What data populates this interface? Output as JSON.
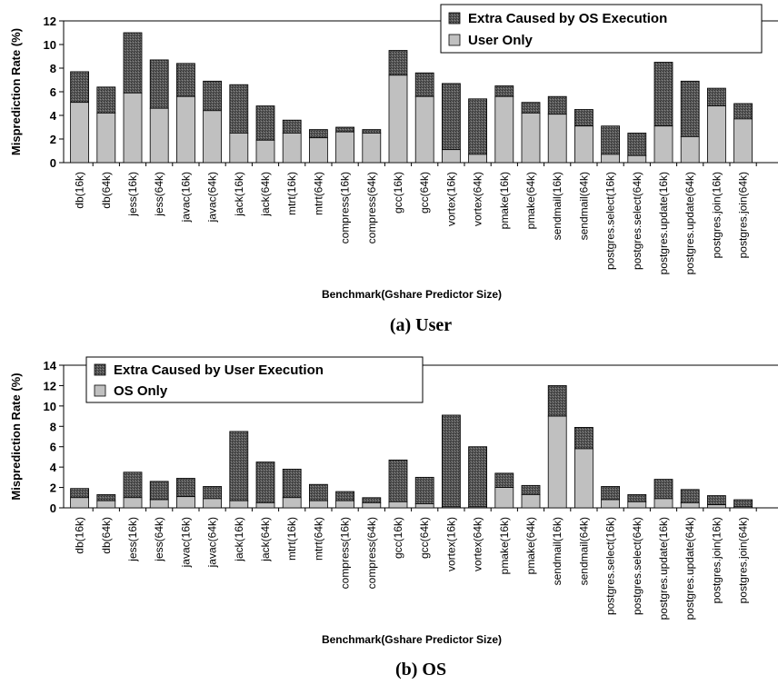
{
  "chart_data": [
    {
      "type": "bar",
      "stacked": true,
      "caption": "(a) User",
      "xlabel": "Benchmark(Gshare Predictor Size)",
      "ylabel": "Misprediction Rate (%)",
      "ylim": [
        0,
        12
      ],
      "yticks": [
        0,
        2,
        4,
        6,
        8,
        10,
        12
      ],
      "legend_position": "top-right",
      "categories": [
        "db(16k)",
        "db(64k)",
        "jess(16k)",
        "jess(64k)",
        "javac(16k)",
        "javac(64k)",
        "jack(16k)",
        "jack(64k)",
        "mtrt(16k)",
        "mtrt(64k)",
        "compress(16k)",
        "compress(64k)",
        "gcc(16k)",
        "gcc(64k)",
        "vortex(16k)",
        "vortex(64k)",
        "pmake(16k)",
        "pmake(64k)",
        "sendmail(16k)",
        "sendmail(64k)",
        "postgres.select(16k)",
        "postgres.select(64k)",
        "postgres.update(16k)",
        "postgres.update(64k)",
        "postgres.join(16k)",
        "postgres.join(64k)"
      ],
      "series": [
        {
          "name": "User Only",
          "color": "#c0c0c0",
          "values": [
            5.1,
            4.2,
            5.9,
            4.6,
            5.6,
            4.4,
            2.5,
            1.9,
            2.5,
            2.1,
            2.6,
            2.5,
            7.4,
            5.6,
            1.1,
            0.7,
            5.6,
            4.2,
            4.1,
            3.1,
            0.7,
            0.6,
            3.1,
            2.2,
            4.8,
            3.7
          ]
        },
        {
          "name": "Extra Caused by OS Execution",
          "color": "#555555",
          "values": [
            2.6,
            2.2,
            5.1,
            4.1,
            2.8,
            2.5,
            4.1,
            2.9,
            1.1,
            0.7,
            0.4,
            0.3,
            2.1,
            2.0,
            5.6,
            4.7,
            0.9,
            0.9,
            1.5,
            1.4,
            2.4,
            1.9,
            5.4,
            4.7,
            1.5,
            1.3
          ]
        }
      ]
    },
    {
      "type": "bar",
      "stacked": true,
      "caption": "(b) OS",
      "xlabel": "Benchmark(Gshare Predictor Size)",
      "ylabel": "Misprediction Rate (%)",
      "ylim": [
        0,
        14
      ],
      "yticks": [
        0,
        2,
        4,
        6,
        8,
        10,
        12,
        14
      ],
      "legend_position": "top-left",
      "categories": [
        "db(16k)",
        "db(64k)",
        "jess(16k)",
        "jess(64k)",
        "javac(16k)",
        "javac(64k)",
        "jack(16k)",
        "jack(64k)",
        "mtrt(16k)",
        "mtrt(64k)",
        "compress(16k)",
        "compress(64k)",
        "gcc(16k)",
        "gcc(64k)",
        "vortex(16k)",
        "vortex(64k)",
        "pmake(16k)",
        "pmake(64k)",
        "sendmail(16k)",
        "sendmail(64k)",
        "postgres.select(16k)",
        "postgres.select(64k)",
        "postgres.update(16k)",
        "postgres.update(64k)",
        "postgres.join(16k)",
        "postgres.join(64k)"
      ],
      "series": [
        {
          "name": "OS Only",
          "color": "#c0c0c0",
          "values": [
            1.0,
            0.7,
            1.0,
            0.8,
            1.1,
            0.9,
            0.7,
            0.5,
            1.0,
            0.7,
            0.7,
            0.5,
            0.6,
            0.4,
            0.1,
            0.1,
            2.0,
            1.3,
            9.0,
            5.8,
            0.8,
            0.6,
            0.9,
            0.5,
            0.3,
            0.1
          ]
        },
        {
          "name": "Extra Caused by User Execution",
          "color": "#555555",
          "values": [
            0.9,
            0.6,
            2.5,
            1.8,
            1.8,
            1.2,
            6.8,
            4.0,
            2.8,
            1.6,
            0.9,
            0.5,
            4.1,
            2.6,
            9.0,
            5.9,
            1.4,
            0.9,
            3.0,
            2.1,
            1.3,
            0.7,
            1.9,
            1.3,
            0.9,
            0.7
          ]
        }
      ]
    }
  ]
}
